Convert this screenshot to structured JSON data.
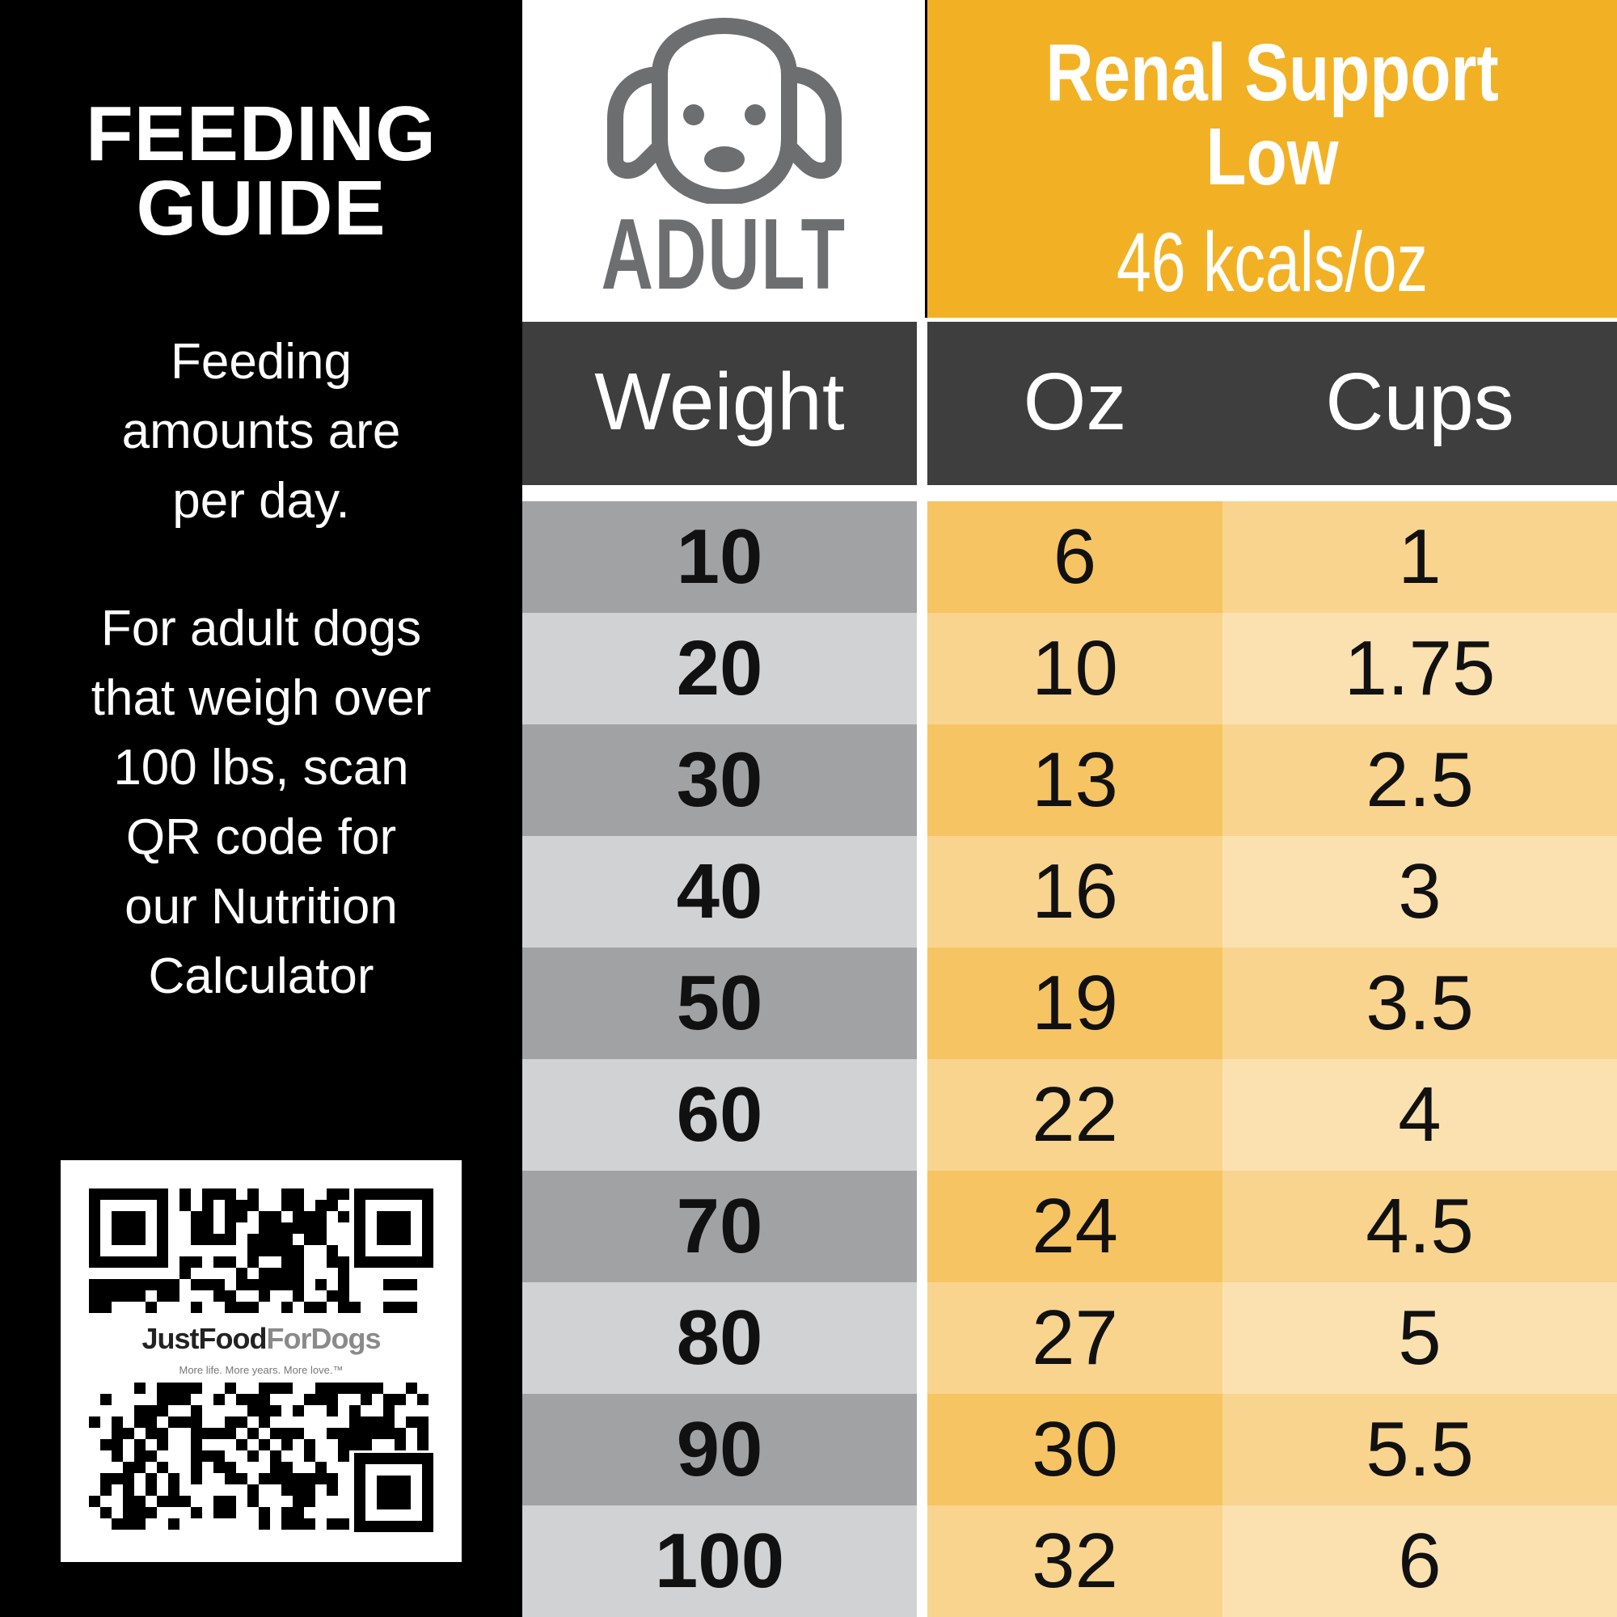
{
  "left_panel": {
    "title_lines": [
      "FEEDING",
      "GUIDE"
    ],
    "per_day_lines": [
      "Feeding",
      "amounts are",
      "per day."
    ],
    "adult_note_lines": [
      "For adult dogs",
      "that weigh over",
      "100 lbs, scan",
      "QR code  for",
      "our Nutrition",
      "Calculator"
    ],
    "qr": {
      "brand_dark": "JustFood",
      "brand_light": "ForDogs",
      "tagline": "More life. More years. More love.™"
    }
  },
  "header": {
    "life_stage": "ADULT",
    "product_lines": [
      "Renal Support",
      "Low"
    ],
    "kcal": "46 kcals/oz"
  },
  "columns": {
    "weight": "Weight",
    "oz": "Oz",
    "cups": "Cups"
  },
  "rows": [
    {
      "weight": "10",
      "oz": "6",
      "cups": "1"
    },
    {
      "weight": "20",
      "oz": "10",
      "cups": "1.75"
    },
    {
      "weight": "30",
      "oz": "13",
      "cups": "2.5"
    },
    {
      "weight": "40",
      "oz": "16",
      "cups": "3"
    },
    {
      "weight": "50",
      "oz": "19",
      "cups": "3.5"
    },
    {
      "weight": "60",
      "oz": "22",
      "cups": "4"
    },
    {
      "weight": "70",
      "oz": "24",
      "cups": "4.5"
    },
    {
      "weight": "80",
      "oz": "27",
      "cups": "5"
    },
    {
      "weight": "90",
      "oz": "30",
      "cups": "5.5"
    },
    {
      "weight": "100",
      "oz": "32",
      "cups": "6"
    }
  ],
  "colors": {
    "accent_yellow": "#f2b124",
    "header_dark": "#3e3e3f",
    "weight_dark": "#a1a2a4",
    "weight_light": "#d1d2d3",
    "oz_dark": "#f7c463",
    "oz_light": "#f9d48e",
    "cups_dark": "#f9d48e",
    "cups_light": "#fbe1b0"
  }
}
